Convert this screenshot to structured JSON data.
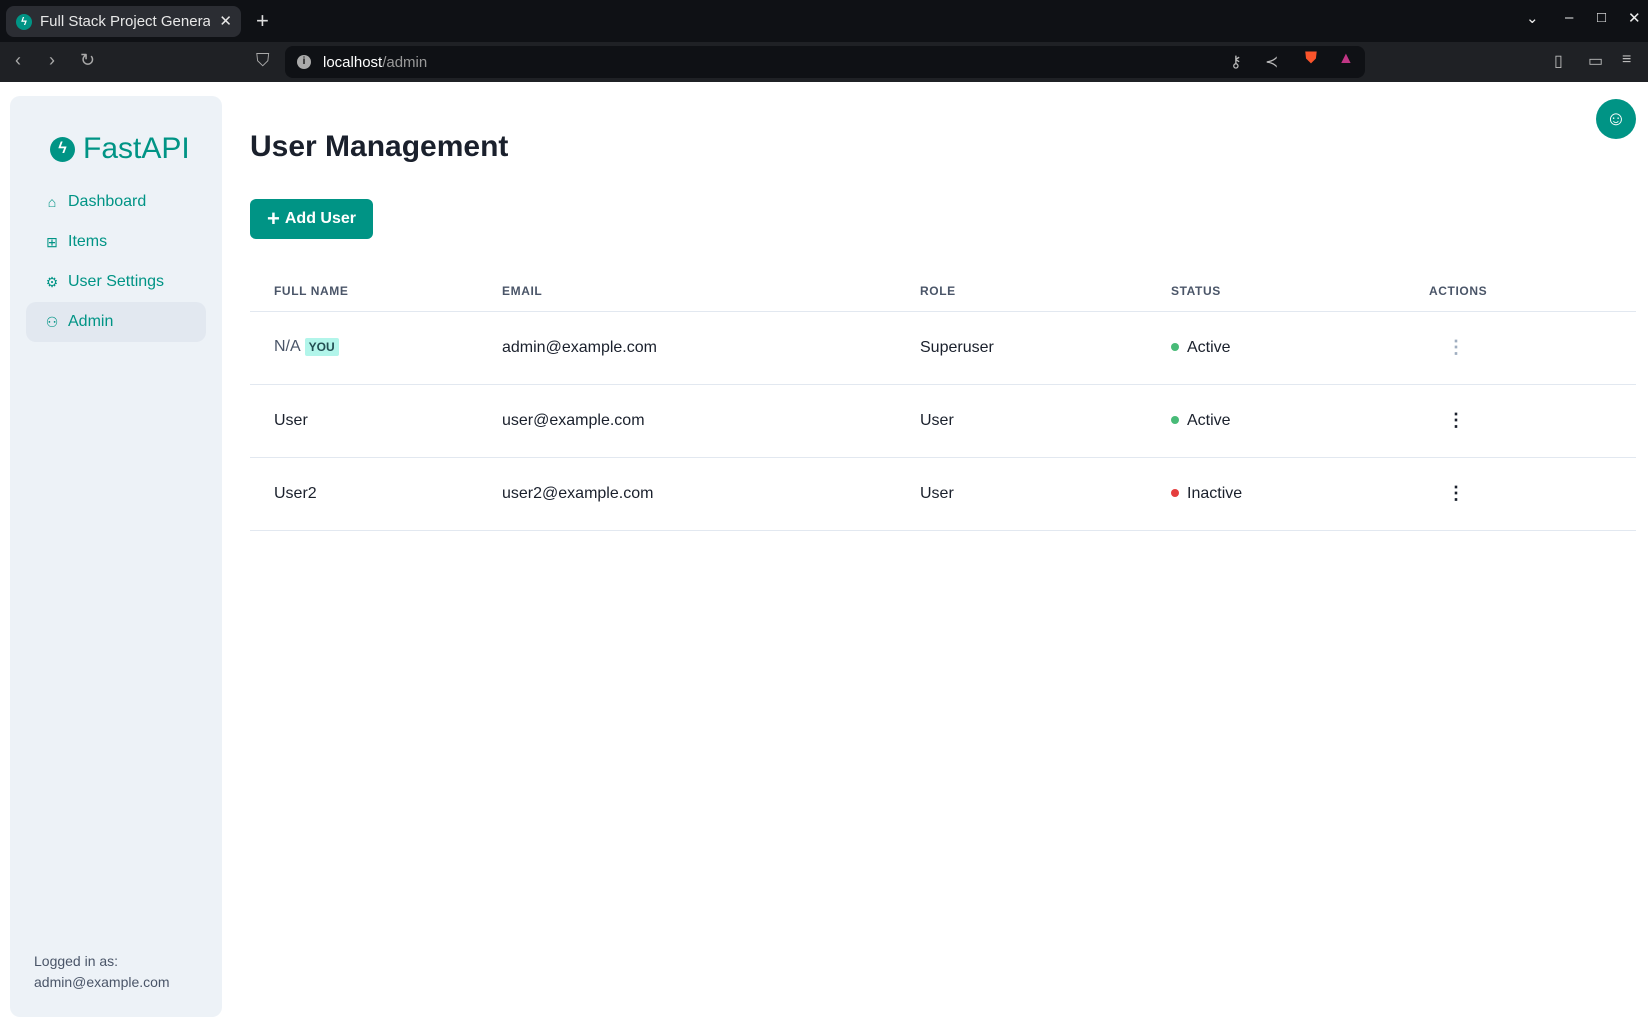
{
  "browser": {
    "tab_title": "Full Stack Project Generator",
    "url_host": "localhost",
    "url_path": "/admin"
  },
  "sidebar": {
    "logo": "FastAPI",
    "items": [
      {
        "label": "Dashboard",
        "icon": "home-icon"
      },
      {
        "label": "Items",
        "icon": "briefcase-icon"
      },
      {
        "label": "User Settings",
        "icon": "gear-icon"
      },
      {
        "label": "Admin",
        "icon": "users-icon",
        "active": true
      }
    ],
    "footer_label": "Logged in as:",
    "footer_email": "admin@example.com"
  },
  "main": {
    "title": "User Management",
    "add_button": "Add User",
    "columns": [
      "FULL NAME",
      "EMAIL",
      "ROLE",
      "STATUS",
      "ACTIONS"
    ],
    "rows": [
      {
        "name": "N/A",
        "badge": "YOU",
        "email": "admin@example.com",
        "role": "Superuser",
        "status": "Active"
      },
      {
        "name": "User",
        "email": "user@example.com",
        "role": "User",
        "status": "Active"
      },
      {
        "name": "User2",
        "email": "user2@example.com",
        "role": "User",
        "status": "Inactive"
      }
    ]
  },
  "colors": {
    "accent": "#009485",
    "active": "#48bb78",
    "inactive": "#e53e3e"
  }
}
